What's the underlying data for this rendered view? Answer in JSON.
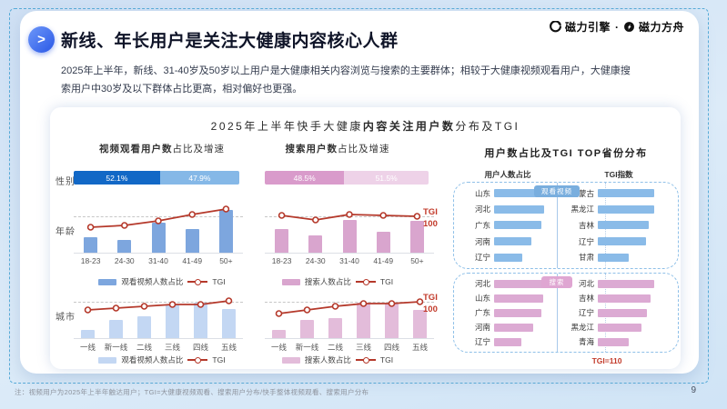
{
  "brand": {
    "engine": "磁力引擎",
    "separator": "·",
    "ark": "磁力方舟"
  },
  "header": {
    "title": "新线、年长用户是关注大健康内容核心人群",
    "subtitle": "2025年上半年，新线、31-40岁及50岁以上用户是大健康相关内容浏览与搜索的主要群体；相较于大健康视频观看用户，大健康搜索用户中30岁及以下群体占比更高，相对偏好也更强。"
  },
  "panel": {
    "title_pre": "2025年上半年快手大健康",
    "title_strong": "内容关注用户数",
    "title_post": "分布及TGI",
    "video_section_strong": "视频观看用户数",
    "video_section_rest": "占比及增速",
    "search_section_strong": "搜索用户数",
    "search_section_rest": "占比及增速",
    "row_labels": {
      "gender": "性别",
      "age": "年龄",
      "city": "城市"
    },
    "tgi_ref": {
      "line1": "TGI",
      "line2": "100"
    },
    "legends": {
      "video_bar": "观看视频人数占比",
      "search_bar": "搜索人数占比",
      "tgi": "TGI"
    }
  },
  "right_panel": {
    "title": "用户数占比及TGI TOP省份分布",
    "col_share": "用户人数占比",
    "col_tgi": "TGI指数",
    "video_badge": "观看视频",
    "search_badge": "搜索",
    "tgi_note": "TGI=110"
  },
  "footer": {
    "note": "注：视频用户为2025年上半年触达用户；TGI=大健康视频观看、搜索用户分布/快手整体视频观看、搜索用户分布",
    "page": "9"
  },
  "colors": {
    "accent_blue_dark": "#1268c6",
    "accent_blue_light": "#85b8e7",
    "accent_pink_dark": "#d99bcb",
    "accent_pink_light": "#eed2e8",
    "tgi_line_red": "#b5392b",
    "note_red": "#c23a2a",
    "dashed_border": "#57abd8"
  },
  "chart_data": [
    {
      "id": "gender_video",
      "type": "stacked_bar",
      "title": "视频观看用户性别占比",
      "segments": [
        {
          "label": "52.1%",
          "value": 52.1,
          "color": "#1268c6"
        },
        {
          "label": "47.9%",
          "value": 47.9,
          "color": "#85b8e7"
        }
      ]
    },
    {
      "id": "gender_search",
      "type": "stacked_bar",
      "title": "搜索用户性别占比",
      "segments": [
        {
          "label": "48.5%",
          "value": 48.5,
          "color": "#d99bcb"
        },
        {
          "label": "51.5%",
          "value": 51.5,
          "color": "#eed2e8"
        }
      ]
    },
    {
      "id": "age_video",
      "type": "bar_line",
      "title": "视频观看用户数占比及TGI（年龄）",
      "categories": [
        "18-23",
        "24-30",
        "31-40",
        "41-49",
        "50+"
      ],
      "bars": [
        0.29,
        0.24,
        0.57,
        0.45,
        0.81
      ],
      "bars_note": "relative bar heights, values unlabeled in source",
      "tgi": [
        88,
        90,
        95,
        102,
        108
      ],
      "tgi_reference": 100,
      "bar_color": "#7da6de",
      "line_color": "#b5392b"
    },
    {
      "id": "age_search",
      "type": "bar_line",
      "title": "搜索用户数占比及TGI（年龄）",
      "categories": [
        "18-23",
        "24-30",
        "31-40",
        "41-49",
        "50+"
      ],
      "bars": [
        0.45,
        0.33,
        0.62,
        0.4,
        0.6
      ],
      "bars_note": "relative bar heights, values unlabeled in source",
      "tgi": [
        101,
        96,
        102,
        101,
        100
      ],
      "tgi_reference": 100,
      "bar_color": "#d9a5ce",
      "line_color": "#b5392b"
    },
    {
      "id": "city_video",
      "type": "bar_line",
      "title": "视频观看用户数占比及TGI（城市）",
      "categories": [
        "一线",
        "新一线",
        "二线",
        "三线",
        "四线",
        "五线"
      ],
      "bars": [
        0.16,
        0.34,
        0.41,
        0.64,
        0.67,
        0.56
      ],
      "bars_note": "relative bar heights, values unlabeled in source",
      "tgi": [
        91,
        93,
        95,
        97,
        97,
        101
      ],
      "tgi_reference": 100,
      "bar_color": "#c3d7f3",
      "line_color": "#b5392b"
    },
    {
      "id": "city_search",
      "type": "bar_line",
      "title": "搜索用户数占比及TGI（城市）",
      "categories": [
        "一线",
        "新一线",
        "二线",
        "三线",
        "四线",
        "五线"
      ],
      "bars": [
        0.16,
        0.34,
        0.38,
        0.67,
        0.65,
        0.53
      ],
      "bars_note": "relative bar heights, values unlabeled in source",
      "tgi": [
        87,
        91,
        95,
        98,
        98,
        100
      ],
      "tgi_reference": 100,
      "bar_color": "#e3bcda",
      "line_color": "#b5392b"
    },
    {
      "id": "video_share_provinces",
      "type": "hbar_list",
      "title": "观看视频·用户人数占比TOP5",
      "items": [
        {
          "label": "山东",
          "value": 1.0
        },
        {
          "label": "河北",
          "value": 0.98
        },
        {
          "label": "广东",
          "value": 0.92
        },
        {
          "label": "河南",
          "value": 0.74
        },
        {
          "label": "辽宁",
          "value": 0.55
        }
      ],
      "values_note": "relative bar lengths, values unlabeled in source",
      "color": "#8abbe8",
      "max_w": 56
    },
    {
      "id": "video_tgi_provinces",
      "type": "hbar_list",
      "title": "观看视频·TGI指数TOP5",
      "items": [
        {
          "label": "内蒙古",
          "value": 1.0
        },
        {
          "label": "黑龙江",
          "value": 1.0
        },
        {
          "label": "吉林",
          "value": 0.9
        },
        {
          "label": "辽宁",
          "value": 0.85
        },
        {
          "label": "甘肃",
          "value": 0.55
        }
      ],
      "values_note": "relative bar lengths, values unlabeled in source",
      "color": "#8abbe8",
      "max_w": 62
    },
    {
      "id": "search_share_provinces",
      "type": "hbar_list",
      "title": "搜索·用户人数占比TOP5",
      "items": [
        {
          "label": "河北",
          "value": 1.0
        },
        {
          "label": "山东",
          "value": 0.96
        },
        {
          "label": "广东",
          "value": 0.93
        },
        {
          "label": "河南",
          "value": 0.76
        },
        {
          "label": "辽宁",
          "value": 0.54
        }
      ],
      "values_note": "relative bar lengths, values unlabeled in source",
      "color": "#dcaad3",
      "max_w": 56
    },
    {
      "id": "search_tgi_provinces",
      "type": "hbar_list",
      "title": "搜索·TGI指数TOP5",
      "items": [
        {
          "label": "河北",
          "value": 1.0
        },
        {
          "label": "吉林",
          "value": 0.94
        },
        {
          "label": "辽宁",
          "value": 0.87
        },
        {
          "label": "黑龙江",
          "value": 0.78
        },
        {
          "label": "青海",
          "value": 0.55
        }
      ],
      "values_note": "relative bar lengths, values unlabeled in source",
      "color": "#dcaad3",
      "max_w": 62
    }
  ]
}
